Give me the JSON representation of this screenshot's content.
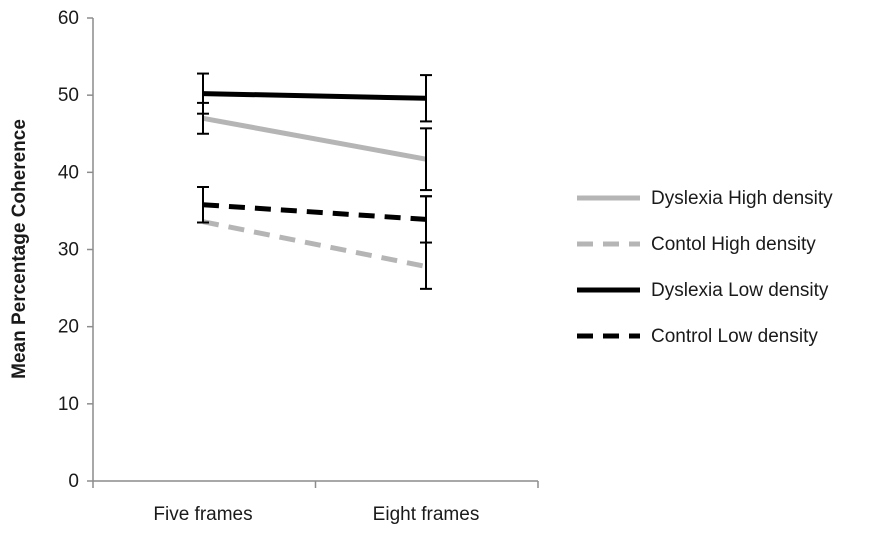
{
  "chart_data": {
    "type": "line",
    "title": "",
    "xlabel": "",
    "ylabel": "Mean Percentage Coherence",
    "ylim": [
      0,
      60
    ],
    "yticks": [
      0,
      10,
      20,
      30,
      40,
      50,
      60
    ],
    "categories": [
      "Five frames",
      "Eight frames"
    ],
    "grid": false,
    "legend_position": "right",
    "series": [
      {
        "name": "Dyslexia High density",
        "values": [
          47.0,
          41.7
        ],
        "error": [
          2.0,
          4.0
        ],
        "color": "#b5b5b5",
        "dash": "solid"
      },
      {
        "name": "Contol High density",
        "values": [
          33.6,
          27.8
        ],
        "error": [
          null,
          null
        ],
        "color": "#b5b5b5",
        "dash": "dashed"
      },
      {
        "name": "Dyslexia Low density",
        "values": [
          50.2,
          49.6
        ],
        "error": [
          2.6,
          3.0
        ],
        "color": "#000000",
        "dash": "solid"
      },
      {
        "name": "Control Low density",
        "values": [
          35.8,
          33.9
        ],
        "error": [
          2.3,
          3.0
        ],
        "color": "#000000",
        "dash": "dashed"
      }
    ],
    "extra_error_bars": [
      {
        "category_index": 1,
        "center": 30.9,
        "error": 6.0
      }
    ]
  }
}
